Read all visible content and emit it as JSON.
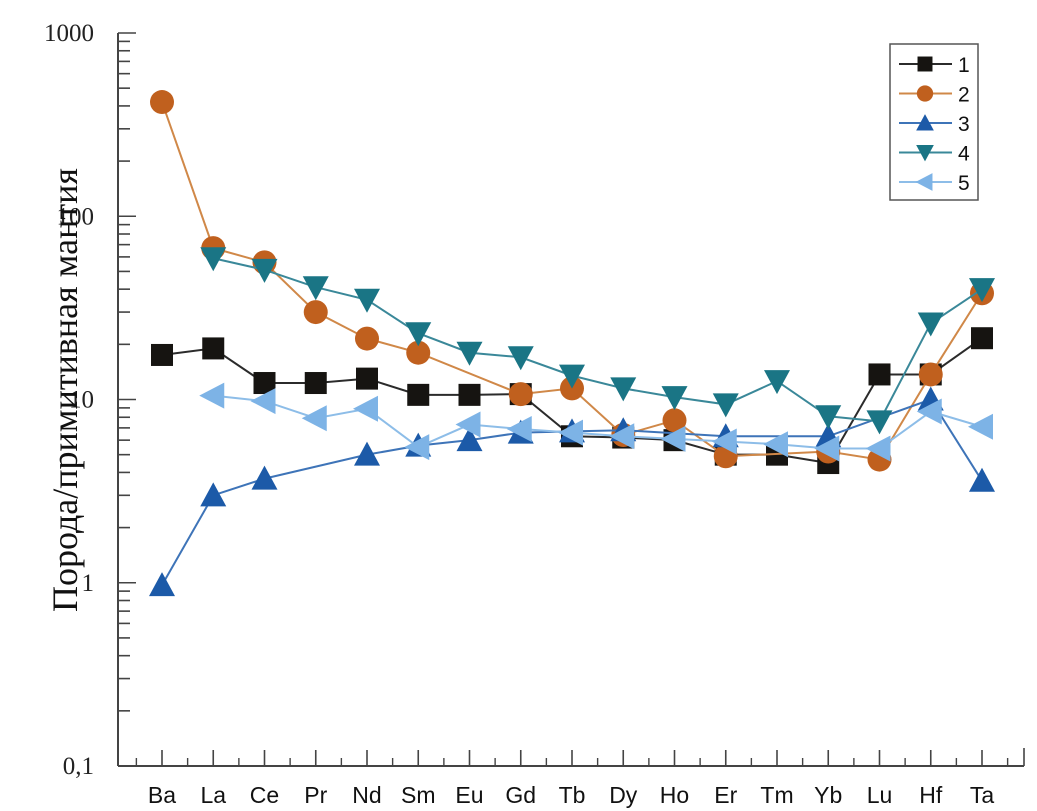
{
  "chart_data": {
    "type": "line",
    "title": "",
    "xlabel": "",
    "ylabel": "Порода/примитивная мантия",
    "yscale": "log",
    "ylim": [
      0.1,
      1000
    ],
    "yticks": [
      {
        "value": 0.1,
        "label": "0,1"
      },
      {
        "value": 1,
        "label": "1"
      },
      {
        "value": 10,
        "label": "10"
      },
      {
        "value": 100,
        "label": "100"
      },
      {
        "value": 1000,
        "label": "1000"
      }
    ],
    "grid": false,
    "legend_position": "top-right",
    "categories": [
      "Ba",
      "La",
      "Ce",
      "Pr",
      "Nd",
      "Sm",
      "Eu",
      "Gd",
      "Tb",
      "Dy",
      "Ho",
      "Er",
      "Tm",
      "Yb",
      "Lu",
      "Hf",
      "Ta"
    ],
    "series": [
      {
        "name": "1",
        "marker": "square",
        "color": "#161411",
        "line_color": "#2b2b2b",
        "values": [
          17.5,
          19,
          12.3,
          12.3,
          13,
          10.6,
          10.6,
          10.7,
          6.3,
          6.2,
          6.0,
          5.0,
          5.0,
          4.5,
          13.7,
          13.7,
          21.6
        ]
      },
      {
        "name": "2",
        "marker": "circle",
        "color": "#c0601e",
        "line_color": "#d08848",
        "values": [
          420,
          67,
          56,
          30,
          21.5,
          18,
          null,
          10.7,
          11.5,
          6.4,
          7.7,
          4.9,
          null,
          5.2,
          4.7,
          13.7,
          38
        ]
      },
      {
        "name": "3",
        "marker": "triangle-up",
        "color": "#1c5aa8",
        "line_color": "#3e74b8",
        "values": [
          0.97,
          3.0,
          3.7,
          null,
          5.0,
          5.6,
          6.0,
          6.6,
          6.7,
          6.8,
          null,
          6.3,
          null,
          6.3,
          null,
          10,
          3.6
        ]
      },
      {
        "name": "4",
        "marker": "triangle-down",
        "color": "#1a7585",
        "line_color": "#3a8899",
        "values": [
          null,
          59,
          51,
          41,
          35,
          23,
          18,
          17,
          13.5,
          11.5,
          10.3,
          9.4,
          12.6,
          8.1,
          7.6,
          26,
          40
        ]
      },
      {
        "name": "5",
        "marker": "triangle-left",
        "color": "#7db3e6",
        "line_color": "#8dbde8",
        "values": [
          null,
          10.5,
          9.8,
          7.9,
          8.9,
          5.5,
          7.3,
          6.9,
          6.6,
          6.3,
          6.1,
          5.9,
          5.7,
          5.4,
          5.4,
          8.6,
          7.1
        ]
      }
    ]
  }
}
